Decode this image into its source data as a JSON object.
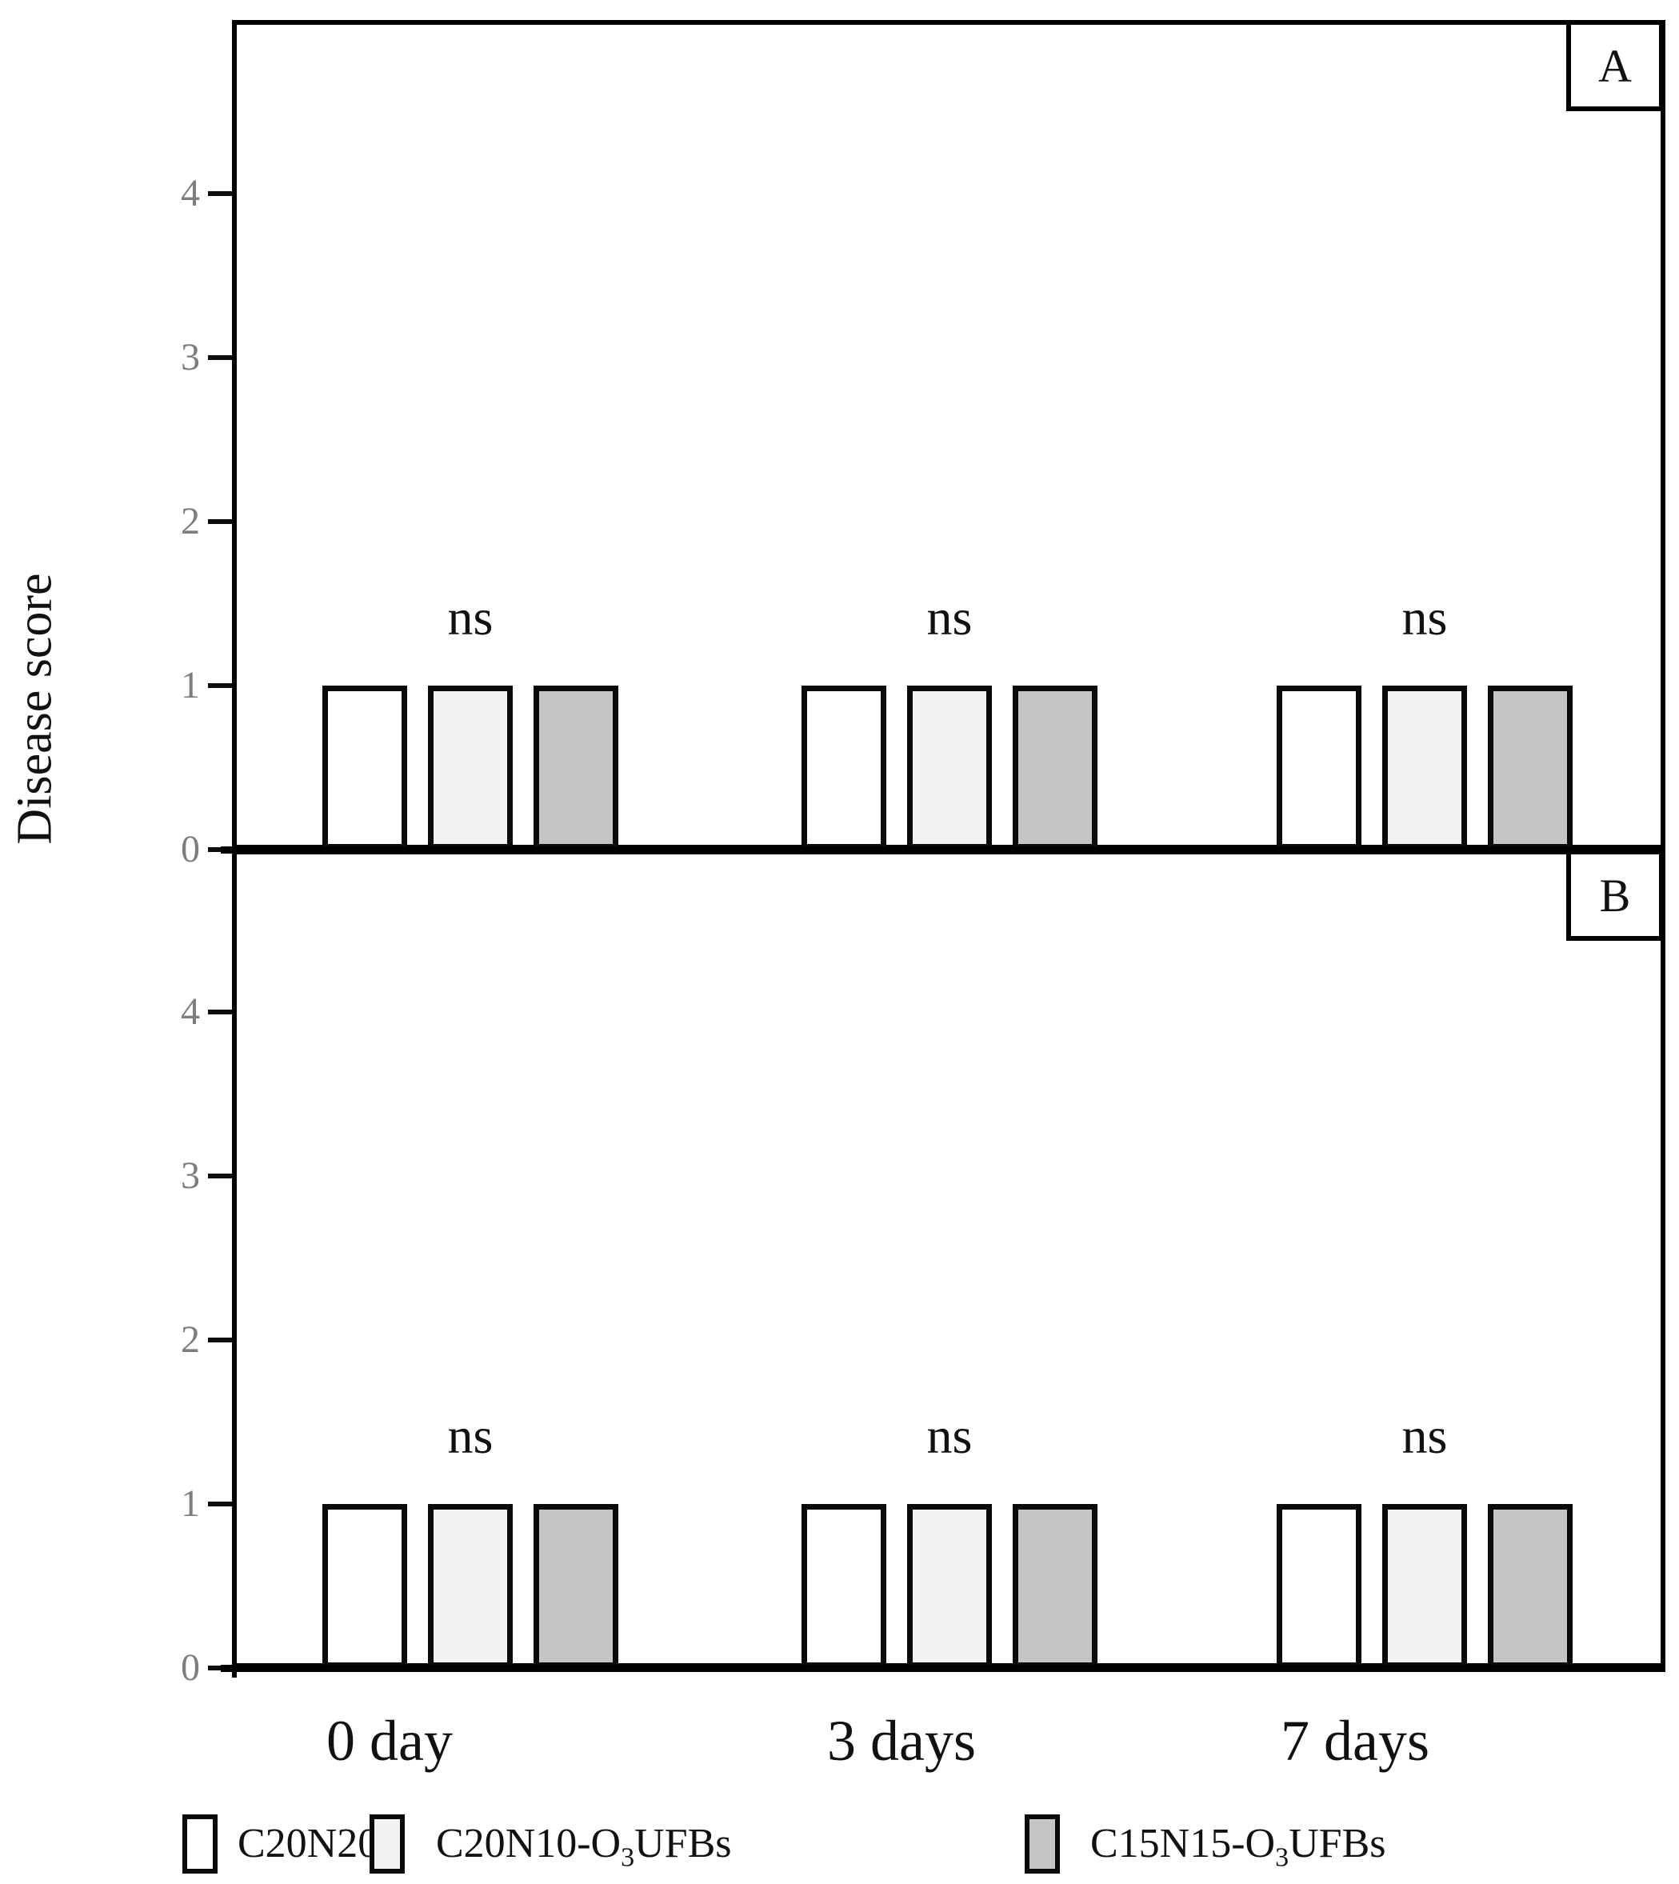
{
  "figure": {
    "ylabel": "Disease score",
    "x_axis_labels": [
      "0 day",
      "3 days",
      "7 days"
    ],
    "panel_labels": [
      "A",
      "B"
    ]
  },
  "chart_data": [
    {
      "type": "bar",
      "panel_label": "A",
      "categories": [
        "0 day",
        "3 days",
        "7 days"
      ],
      "series": [
        {
          "name": "C20N20",
          "fill": "#ffffff",
          "values": [
            1,
            1,
            1
          ]
        },
        {
          "name": "C20N10-O3UFBs",
          "fill": "#f2f2f2",
          "values": [
            1,
            1,
            1
          ]
        },
        {
          "name": "C15N15-O3UFBs",
          "fill": "#c5c5c5",
          "values": [
            1,
            1,
            1
          ]
        }
      ],
      "annotations": [
        {
          "text": "ns",
          "category": "0 day"
        },
        {
          "text": "ns",
          "category": "3 days"
        },
        {
          "text": "ns",
          "category": "7 days"
        }
      ],
      "ylabel": "Disease score",
      "ylim": [
        0,
        5
      ],
      "yticks": [
        0,
        1,
        2,
        3,
        4
      ],
      "grid": false,
      "legend_position": "bottom"
    },
    {
      "type": "bar",
      "panel_label": "B",
      "categories": [
        "0 day",
        "3 days",
        "7 days"
      ],
      "series": [
        {
          "name": "C20N20",
          "fill": "#ffffff",
          "values": [
            1,
            1,
            1
          ]
        },
        {
          "name": "C20N10-O3UFBs",
          "fill": "#f2f2f2",
          "values": [
            1,
            1,
            1
          ]
        },
        {
          "name": "C15N15-O3UFBs",
          "fill": "#c5c5c5",
          "values": [
            1,
            1,
            1
          ]
        }
      ],
      "annotations": [
        {
          "text": "ns",
          "category": "0 day"
        },
        {
          "text": "ns",
          "category": "3 days"
        },
        {
          "text": "ns",
          "category": "7 days"
        }
      ],
      "ylabel": "Disease score",
      "ylim": [
        0,
        5
      ],
      "yticks": [
        0,
        1,
        2,
        3,
        4
      ],
      "grid": false,
      "legend_position": "bottom"
    }
  ],
  "legend": {
    "entries": [
      {
        "base": "C20N20",
        "subscript": "",
        "rest": "",
        "fill": "#ffffff"
      },
      {
        "base": "C20N10-O",
        "subscript": "3",
        "rest": "UFBs",
        "fill": "#f2f2f2"
      },
      {
        "base": "C15N15-O",
        "subscript": "3",
        "rest": "UFBs",
        "fill": "#c5c5c5"
      }
    ]
  },
  "colors": {
    "axis": "#000000",
    "tick_label": "#7d7d7d",
    "bar_border": "#0a0a0a",
    "text": "#111111",
    "background": "#ffffff"
  }
}
